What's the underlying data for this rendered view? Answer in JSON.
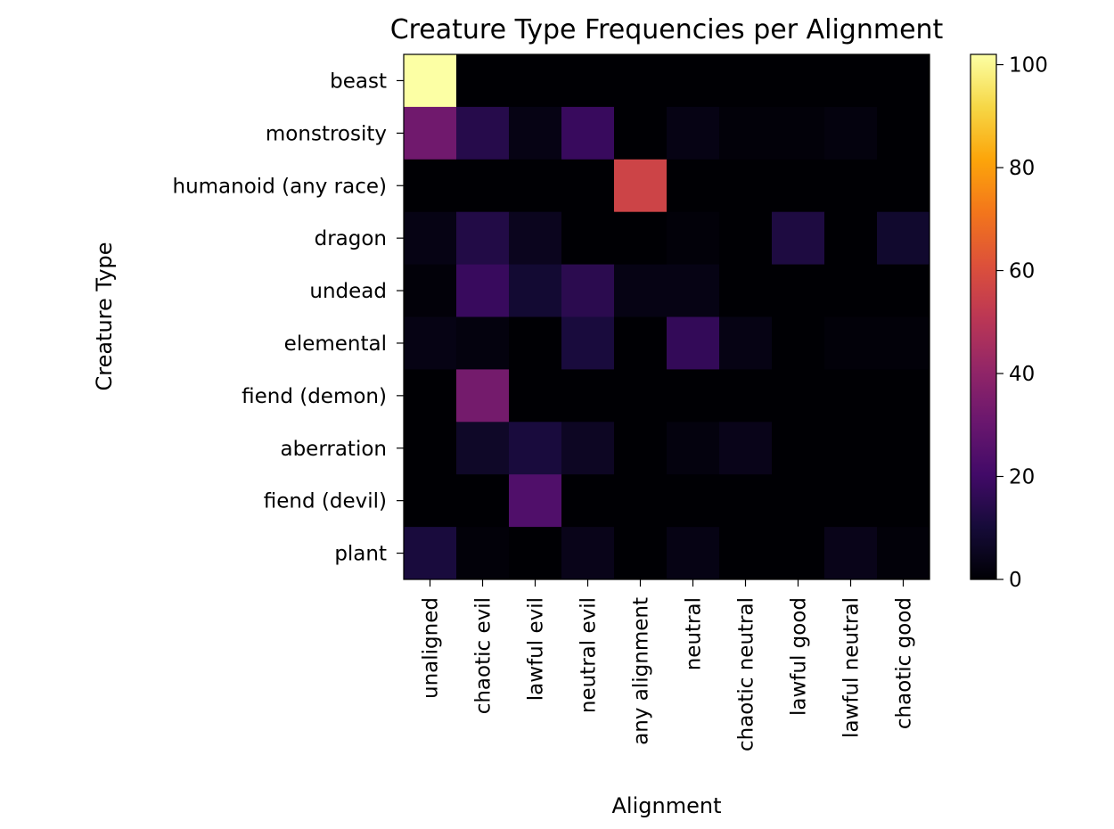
{
  "chart_data": {
    "type": "heatmap",
    "title": "Creature Type Frequencies per Alignment",
    "xlabel": "Alignment",
    "ylabel": "Creature Type",
    "x_categories": [
      "unaligned",
      "chaotic evil",
      "lawful evil",
      "neutral evil",
      "any alignment",
      "neutral",
      "chaotic neutral",
      "lawful good",
      "lawful neutral",
      "chaotic good"
    ],
    "y_categories": [
      "beast",
      "monstrosity",
      "humanoid (any race)",
      "dragon",
      "undead",
      "elemental",
      "fiend (demon)",
      "aberration",
      "fiend (devil)",
      "plant"
    ],
    "values": [
      [
        102,
        0,
        0,
        0,
        0,
        0,
        0,
        0,
        0,
        0
      ],
      [
        32,
        14,
        3,
        18,
        0,
        3,
        1,
        1,
        2,
        0
      ],
      [
        0,
        0,
        0,
        0,
        56,
        0,
        0,
        0,
        0,
        0
      ],
      [
        3,
        13,
        5,
        0,
        0,
        1,
        0,
        12,
        0,
        8
      ],
      [
        1,
        18,
        9,
        15,
        3,
        3,
        0,
        0,
        0,
        0
      ],
      [
        3,
        2,
        0,
        11,
        0,
        17,
        3,
        0,
        1,
        1
      ],
      [
        0,
        33,
        0,
        0,
        0,
        0,
        0,
        0,
        0,
        0
      ],
      [
        0,
        7,
        11,
        6,
        0,
        2,
        4,
        0,
        0,
        0
      ],
      [
        0,
        0,
        24,
        0,
        0,
        0,
        0,
        0,
        0,
        0
      ],
      [
        11,
        1,
        0,
        4,
        0,
        3,
        0,
        0,
        4,
        1
      ]
    ],
    "colormap": "inferno",
    "colorbar": {
      "min": 0,
      "max": 102,
      "ticks": [
        0,
        20,
        40,
        60,
        80,
        100
      ]
    }
  }
}
